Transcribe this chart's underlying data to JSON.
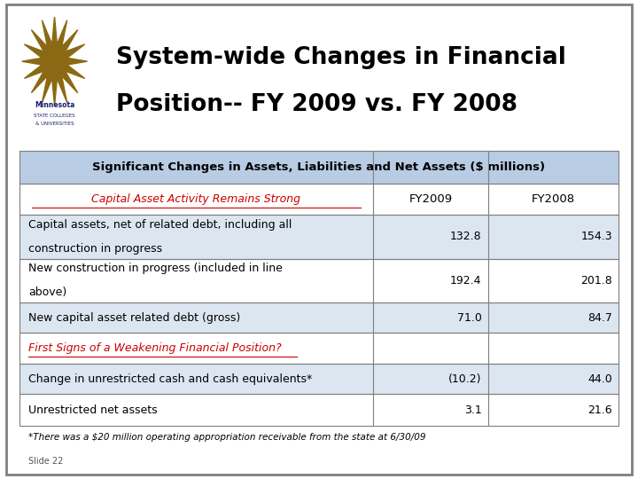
{
  "title_line1": "System-wide Changes in Financial",
  "title_line2": "Position-- FY 2009 vs. FY 2008",
  "table_header": "Significant Changes in Assets, Liabilities and Net Assets ($ millions)",
  "col_headers": [
    "FY2009",
    "FY2008"
  ],
  "section1_label": "Capital Asset Activity Remains Strong",
  "rows": [
    {
      "label1": "Capital assets, net of related debt, including all",
      "label2": "construction in progress",
      "fy2009": "132.8",
      "fy2008": "154.3"
    },
    {
      "label1": "New construction in progress (included in line",
      "label2": "above)",
      "fy2009": "192.4",
      "fy2008": "201.8"
    },
    {
      "label1": "New capital asset related debt (gross)",
      "label2": "",
      "fy2009": "71.0",
      "fy2008": "84.7"
    }
  ],
  "section2_label": "First Signs of a Weakening Financial Position?",
  "rows2": [
    {
      "label1": "Change in unrestricted cash and cash equivalents*",
      "label2": "",
      "fy2009": "(10.2)",
      "fy2008": "44.0"
    },
    {
      "label1": "Unrestricted net assets",
      "label2": "",
      "fy2009": "3.1",
      "fy2008": "21.6"
    }
  ],
  "footnote": "*There was a $20 million operating appropriation receivable from the state at 6/30/09",
  "slide_label": "Slide 22",
  "bg_color": "#ffffff",
  "header_bg": "#b8cce4",
  "alt_row_bg": "#dce6f1",
  "white_row_bg": "#ffffff",
  "border_color": "#7f7f7f",
  "title_color": "#000000",
  "body_text_color": "#000000",
  "section1_color": "#cc0000",
  "section2_color": "#cc0000",
  "logo_bg": "#c9b47a",
  "outer_border_color": "#7f7f7f"
}
